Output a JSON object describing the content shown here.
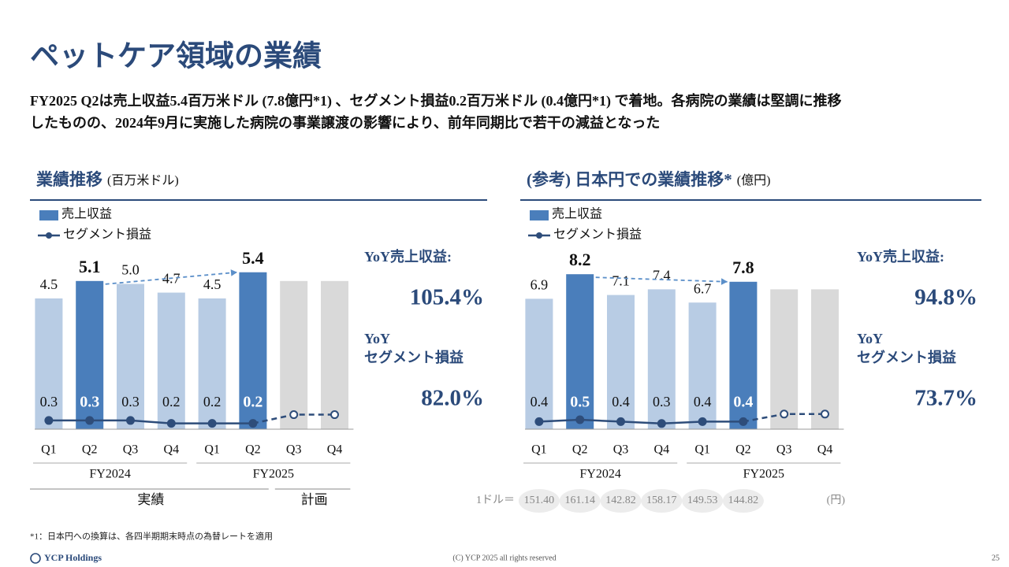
{
  "header": {
    "title": "ペットケア領域の業績",
    "subtitle": [
      "FY2025 Q2は売上収益5.4百万米ドル (7.8億円*1) 、セグメント損益0.2百万米ドル (0.4億円*1) で着地。各病院の業績は堅調に推移",
      "したものの、2024年9月に実施した病院の事業譲渡の影響により、前年同期比で若干の減益となった"
    ]
  },
  "chart_data": [
    {
      "type": "bar",
      "title": "業績推移",
      "unit": "(百万米ドル)",
      "categories": [
        "Q1",
        "Q2",
        "Q3",
        "Q4",
        "Q1",
        "Q2",
        "Q3",
        "Q4"
      ],
      "groups": [
        "FY2024",
        "FY2025"
      ],
      "phases": [
        {
          "label": "実績",
          "count": 6
        },
        {
          "label": "計画",
          "count": 2
        }
      ],
      "highlight": [
        1,
        5
      ],
      "ylim": [
        0,
        6
      ],
      "series": [
        {
          "name": "売上収益",
          "kind": "bar",
          "color": "#b8cce4",
          "highlight_color": "#4a7ebb",
          "plan_color": "#d9d9d9",
          "values": [
            4.5,
            5.1,
            5.0,
            4.7,
            4.5,
            5.4,
            5.1,
            5.1
          ],
          "value_labels": [
            "4.5",
            "5.1",
            "5.0",
            "4.7",
            "4.5",
            "5.4",
            null,
            null
          ]
        },
        {
          "name": "セグメント損益",
          "kind": "line",
          "color": "#2e4d7a",
          "values": [
            0.3,
            0.3,
            0.3,
            0.2,
            0.2,
            0.2,
            0.5,
            0.5
          ],
          "value_labels": [
            "0.3",
            "0.3",
            "0.3",
            "0.2",
            "0.2",
            "0.2",
            null,
            null
          ]
        }
      ],
      "yoy": [
        {
          "label": [
            "YoY売上収益:"
          ],
          "value": "105.4%"
        },
        {
          "label": [
            "YoY",
            "セグメント損益"
          ],
          "value": "82.0%"
        }
      ]
    },
    {
      "type": "bar",
      "title": "(参考) 日本円での業績推移*",
      "unit": "(億円)",
      "categories": [
        "Q1",
        "Q2",
        "Q3",
        "Q4",
        "Q1",
        "Q2",
        "Q3",
        "Q4"
      ],
      "groups": [
        "FY2024",
        "FY2025"
      ],
      "highlight": [
        1,
        5
      ],
      "ylim": [
        0,
        9
      ],
      "series": [
        {
          "name": "売上収益",
          "kind": "bar",
          "color": "#b8cce4",
          "highlight_color": "#4a7ebb",
          "plan_color": "#d9d9d9",
          "values": [
            6.9,
            8.2,
            7.1,
            7.4,
            6.7,
            7.8,
            7.4,
            7.4
          ],
          "value_labels": [
            "6.9",
            "8.2",
            "7.1",
            "7.4",
            "6.7",
            "7.8",
            null,
            null
          ]
        },
        {
          "name": "セグメント損益",
          "kind": "line",
          "color": "#2e4d7a",
          "values": [
            0.4,
            0.5,
            0.4,
            0.3,
            0.4,
            0.4,
            0.8,
            0.8
          ],
          "value_labels": [
            "0.4",
            "0.5",
            "0.4",
            "0.3",
            "0.4",
            "0.4",
            null,
            null
          ]
        }
      ],
      "yoy": [
        {
          "label": [
            "YoY売上収益:"
          ],
          "value": "94.8%"
        },
        {
          "label": [
            "YoY",
            "セグメント損益"
          ],
          "value": "73.7%"
        }
      ],
      "fx": {
        "label": "1ドル＝",
        "rates": [
          "151.40",
          "161.14",
          "142.82",
          "158.17",
          "149.53",
          "144.82"
        ],
        "unit": "(円)"
      }
    }
  ],
  "footer": {
    "note": "*1：日本円への換算は、各四半期期末時点の為替レートを適用",
    "company": "YCP Holdings",
    "copyright": "(C) YCP 2025 all rights reserved",
    "page": "25"
  }
}
